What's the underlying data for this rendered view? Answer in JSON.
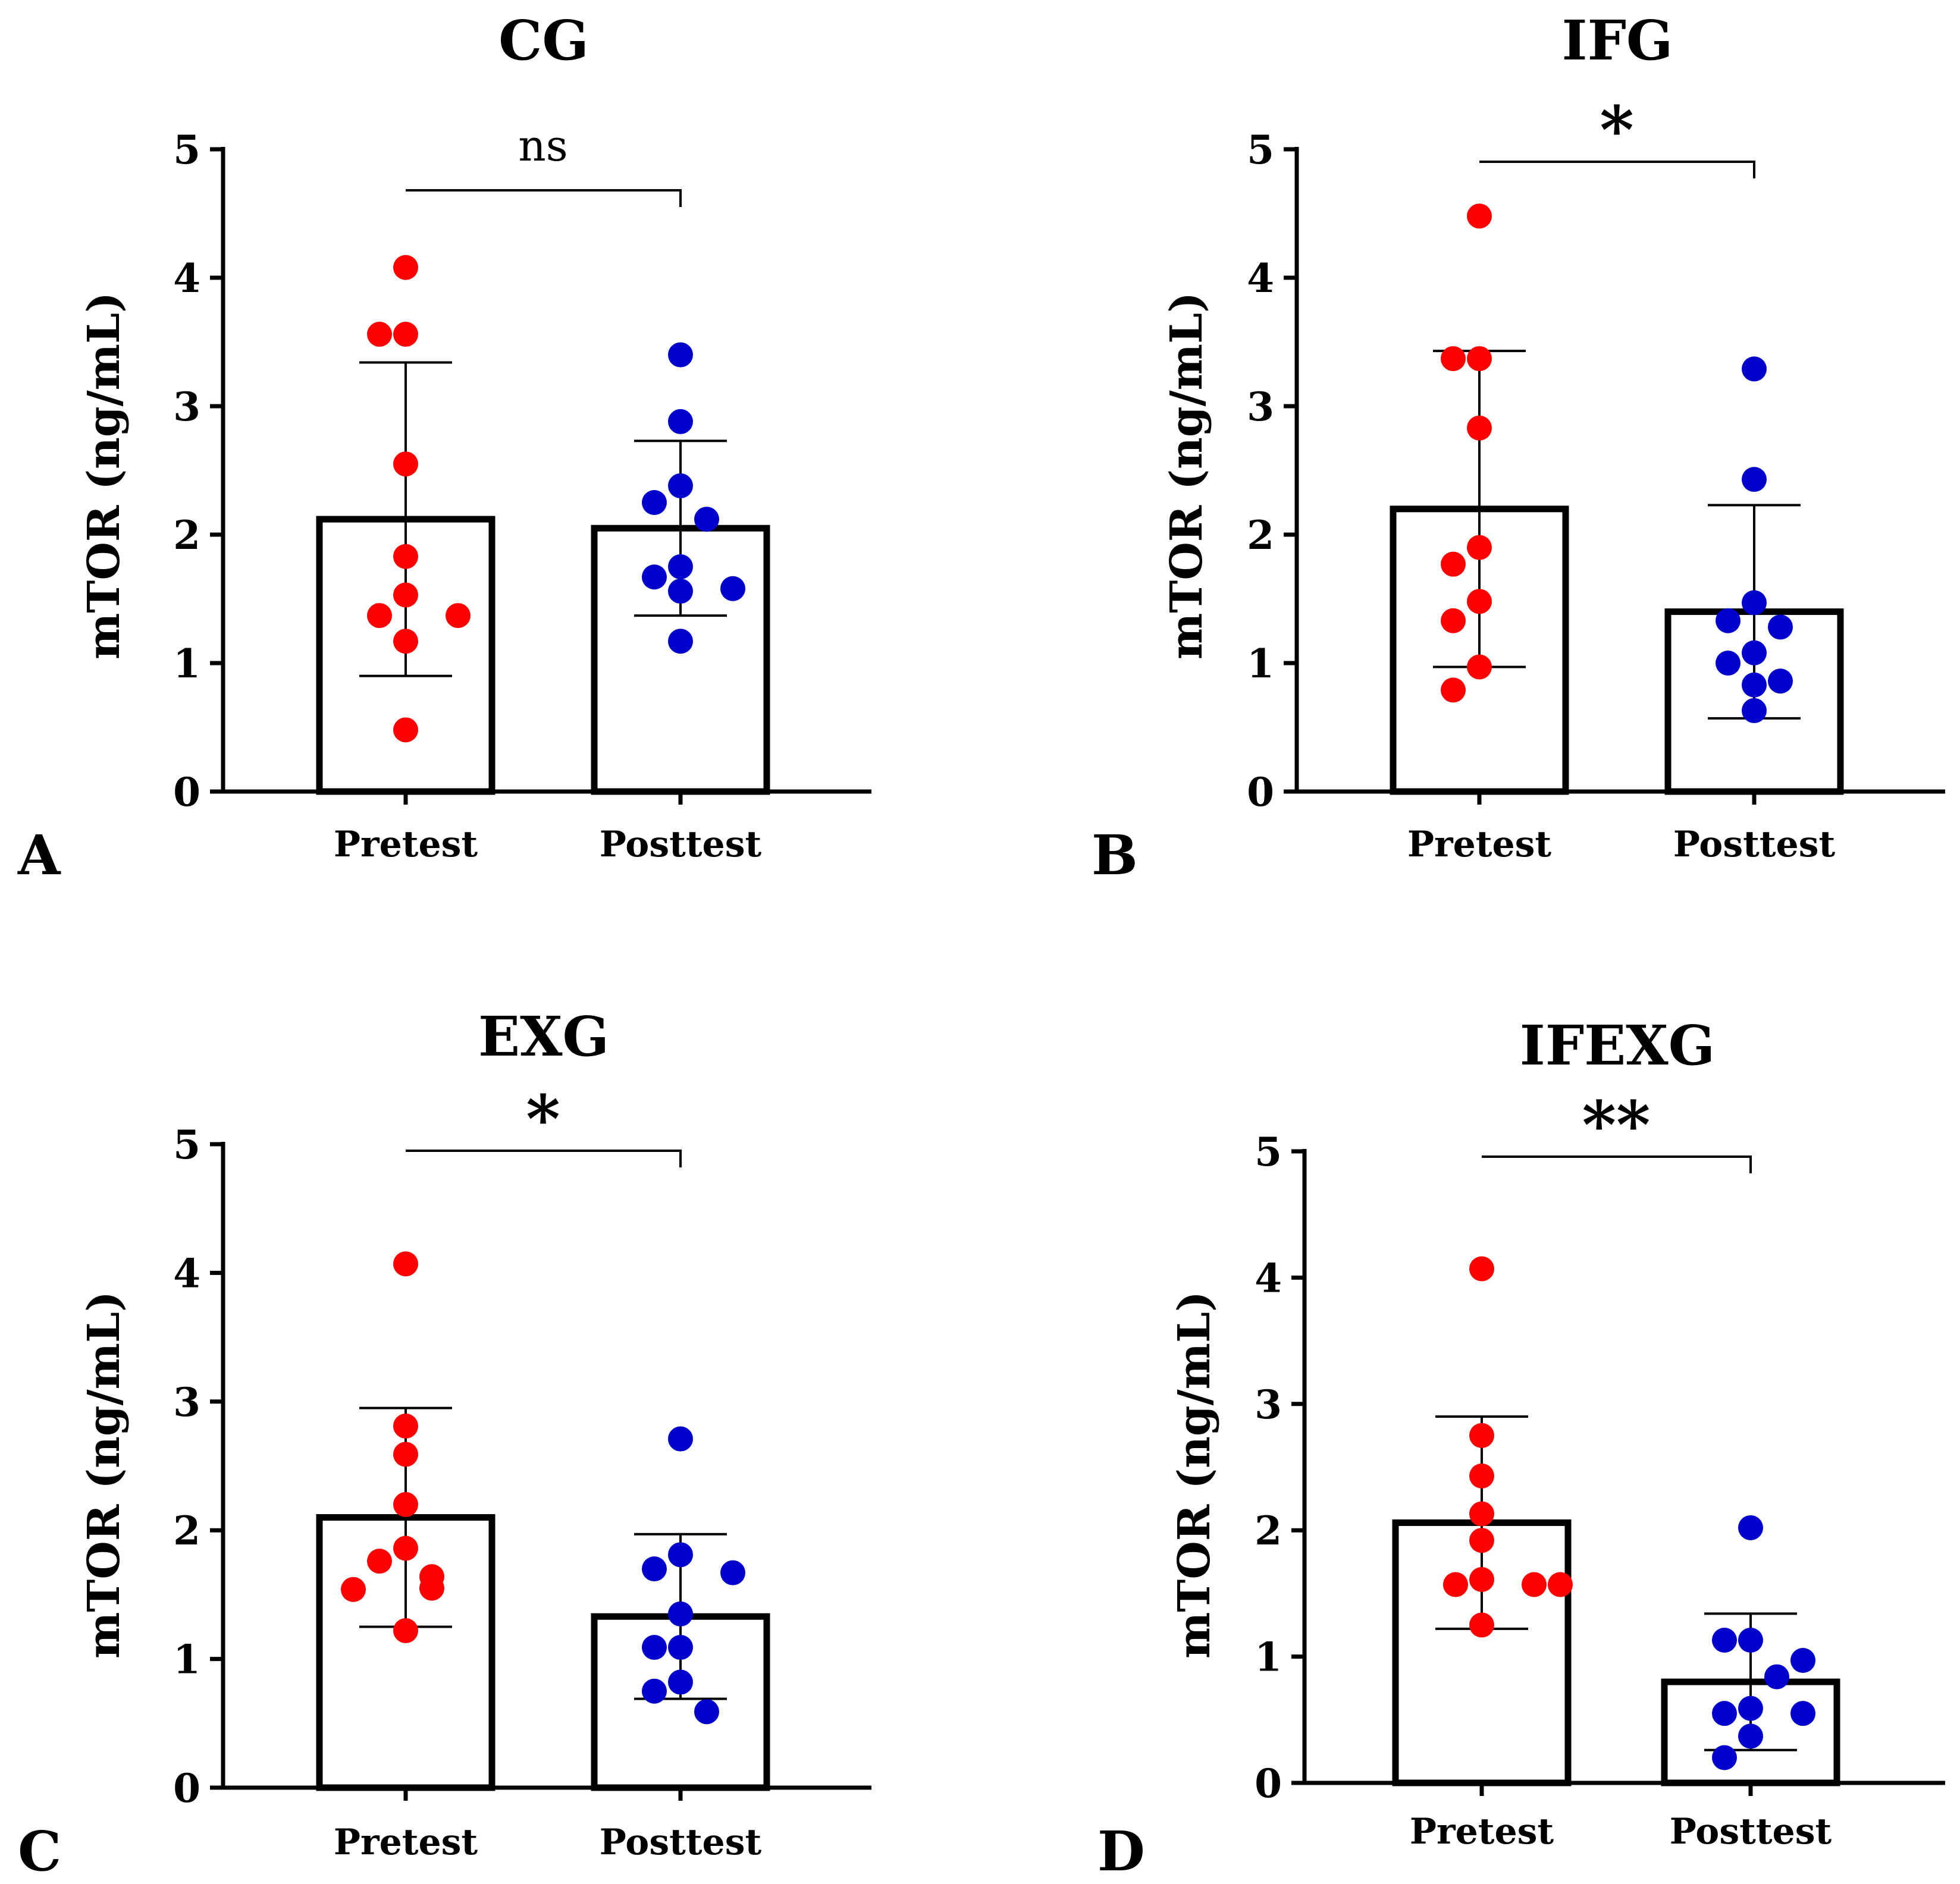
{
  "figure": {
    "colors": {
      "pretest_points": "#ff0000",
      "posttest_points": "#0000cc",
      "bar_outline": "#000000",
      "background": "#ffffff"
    }
  },
  "chart_data": [
    {
      "type": "bar",
      "panel_label": "A",
      "title": "CG",
      "ylabel": "mTOR (ng/mL)",
      "xlabel": "",
      "ylim": [
        0,
        5
      ],
      "yticks": [
        "0",
        "1",
        "2",
        "3",
        "4",
        "5"
      ],
      "categories": [
        "Pretest",
        "Posttest"
      ],
      "means": [
        2.12,
        2.05
      ],
      "sd": [
        1.22,
        0.68
      ],
      "significance": "ns",
      "points": [
        [
          4.08,
          3.56,
          3.56,
          2.55,
          1.83,
          1.53,
          1.37,
          1.37,
          1.17,
          0.48
        ],
        [
          3.4,
          2.88,
          2.38,
          2.25,
          2.12,
          1.75,
          1.67,
          1.58,
          1.56,
          1.17
        ]
      ]
    },
    {
      "type": "bar",
      "panel_label": "B",
      "title": "IFG",
      "ylabel": "mTOR (ng/mL)",
      "xlabel": "",
      "ylim": [
        0,
        5
      ],
      "yticks": [
        "0",
        "1",
        "2",
        "3",
        "4",
        "5"
      ],
      "categories": [
        "Pretest",
        "Posttest"
      ],
      "means": [
        2.2,
        1.4
      ],
      "sd": [
        1.23,
        0.83
      ],
      "significance": "*",
      "points": [
        [
          4.48,
          3.37,
          3.37,
          2.83,
          1.9,
          1.77,
          1.48,
          1.33,
          0.97,
          0.79
        ],
        [
          3.29,
          2.43,
          1.47,
          1.33,
          1.28,
          1.08,
          1.0,
          0.86,
          0.83,
          0.63
        ]
      ]
    },
    {
      "type": "bar",
      "panel_label": "C",
      "title": "EXG",
      "ylabel": "mTOR (ng/mL)",
      "xlabel": "",
      "ylim": [
        0,
        5
      ],
      "yticks": [
        "0",
        "1",
        "2",
        "3",
        "4",
        "5"
      ],
      "categories": [
        "Pretest",
        "Posttest"
      ],
      "means": [
        2.1,
        1.33
      ],
      "sd": [
        0.85,
        0.64
      ],
      "significance": "*",
      "points": [
        [
          4.07,
          2.81,
          2.59,
          2.2,
          1.86,
          1.76,
          1.64,
          1.55,
          1.54,
          1.22
        ],
        [
          2.71,
          1.81,
          1.7,
          1.67,
          1.35,
          1.09,
          1.09,
          0.82,
          0.75,
          0.59
        ]
      ]
    },
    {
      "type": "bar",
      "panel_label": "D",
      "title": "IFEXG",
      "ylabel": "mTOR (ng/mL)",
      "xlabel": "",
      "ylim": [
        0,
        5
      ],
      "yticks": [
        "0",
        "1",
        "2",
        "3",
        "4",
        "5"
      ],
      "categories": [
        "Pretest",
        "Posttest"
      ],
      "means": [
        2.06,
        0.8
      ],
      "sd": [
        0.84,
        0.54
      ],
      "significance": "**",
      "points": [
        [
          4.07,
          2.75,
          2.43,
          2.13,
          1.92,
          1.61,
          1.57,
          1.57,
          1.57,
          1.25
        ],
        [
          2.02,
          1.13,
          1.13,
          0.97,
          0.84,
          0.59,
          0.55,
          0.55,
          0.37,
          0.2
        ]
      ]
    }
  ]
}
